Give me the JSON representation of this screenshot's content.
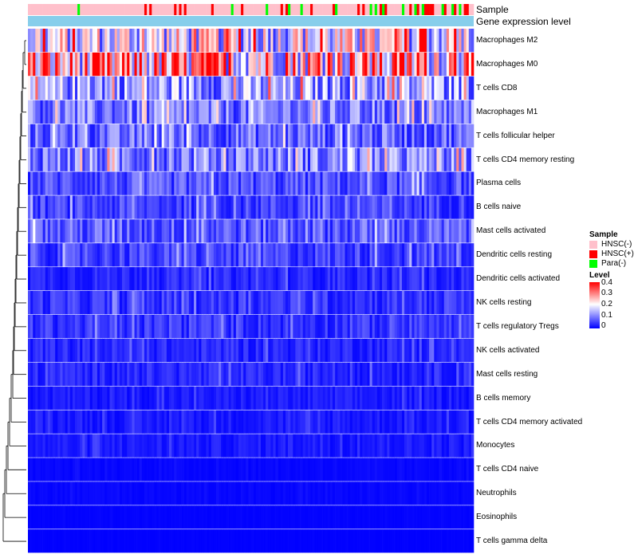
{
  "chart_data": {
    "type": "heatmap",
    "title": "",
    "annotation_rows": [
      "Sample",
      "Gene expression level"
    ],
    "rows": [
      {
        "name": "Macrophages M2",
        "level": 0.18
      },
      {
        "name": "Macrophages M0",
        "level": 0.24
      },
      {
        "name": "T cells CD8",
        "level": 0.12
      },
      {
        "name": "Macrophages M1",
        "level": 0.09
      },
      {
        "name": "T cells follicular helper",
        "level": 0.08
      },
      {
        "name": "T cells CD4 memory resting",
        "level": 0.1
      },
      {
        "name": "Plasma cells",
        "level": 0.06
      },
      {
        "name": "B cells naive",
        "level": 0.05
      },
      {
        "name": "Mast cells activated",
        "level": 0.07
      },
      {
        "name": "Dendritic cells resting",
        "level": 0.05
      },
      {
        "name": "Dendritic cells activated",
        "level": 0.03
      },
      {
        "name": "NK cells resting",
        "level": 0.04
      },
      {
        "name": "T cells regulatory  Tregs",
        "level": 0.04
      },
      {
        "name": "NK cells activated",
        "level": 0.03
      },
      {
        "name": "Mast cells resting",
        "level": 0.03
      },
      {
        "name": "B cells memory",
        "level": 0.02
      },
      {
        "name": "T cells CD4 memory activated",
        "level": 0.02
      },
      {
        "name": "Monocytes",
        "level": 0.02
      },
      {
        "name": "T cells CD4 naive",
        "level": 0.005
      },
      {
        "name": "Neutrophils",
        "level": 0.005
      },
      {
        "name": "Eosinophils",
        "level": 0.002
      },
      {
        "name": "T cells gamma delta",
        "level": 0.001
      }
    ],
    "legend": {
      "sample": {
        "title": "Sample",
        "items": [
          {
            "label": "HNSC(-)",
            "color": "#ffc0cb"
          },
          {
            "label": "HNSC(+)",
            "color": "#ff0000"
          },
          {
            "label": "Para(-)",
            "color": "#00ff00"
          }
        ]
      },
      "level": {
        "title": "Level",
        "ticks": [
          "0.4",
          "0.3",
          "0.2",
          "0.1",
          "0"
        ],
        "range": [
          0,
          0.4
        ],
        "low_color": "#0000ff",
        "mid_color": "#ffffff",
        "high_color": "#ff0000"
      }
    },
    "gene_expression_color": "#87ceeb"
  }
}
